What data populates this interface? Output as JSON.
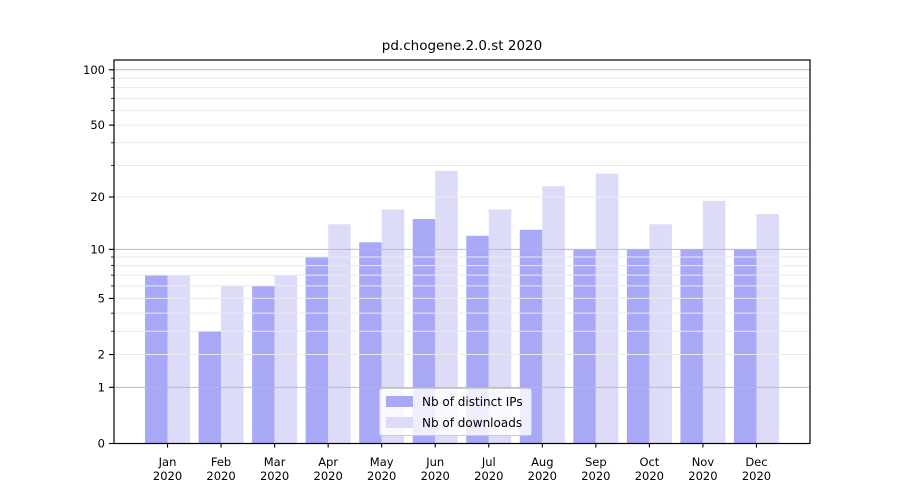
{
  "figure": {
    "background": "#ffffff"
  },
  "chart_data": {
    "type": "bar",
    "title": "pd.chogene.2.0.st 2020",
    "categories": [
      "Jan",
      "Feb",
      "Mar",
      "Apr",
      "May",
      "Jun",
      "Jul",
      "Aug",
      "Sep",
      "Oct",
      "Nov",
      "Dec"
    ],
    "category_year": "2020",
    "series": [
      {
        "key": "distinct-ips",
        "name": "Nb of distinct IPs",
        "color": "#a8a8f7",
        "values": [
          7,
          3,
          6,
          9,
          11,
          15,
          12,
          13,
          10,
          10,
          10,
          10
        ]
      },
      {
        "key": "downloads",
        "name": "Nb of downloads",
        "color": "#dcdcf8",
        "values": [
          7,
          6,
          7,
          14,
          17,
          28,
          17,
          23,
          27,
          14,
          19,
          16
        ]
      }
    ],
    "xlabel": "",
    "ylabel": "",
    "yscale": "log1p",
    "ylim": [
      0,
      113
    ],
    "ytick_values": [
      0,
      1,
      2,
      5,
      10,
      20,
      50,
      100
    ],
    "major_grid_values": [
      1,
      10,
      100
    ],
    "minor_grid_values": [
      2,
      3,
      4,
      5,
      6,
      7,
      8,
      9,
      20,
      30,
      40,
      50,
      60,
      70,
      80,
      90
    ],
    "grid": "on",
    "legend_position": "lower center",
    "colors": {
      "axis": "#000000",
      "text": "#000000",
      "grid_major": "#bbbbbb",
      "grid_minor": "#eaeaea",
      "legend_border": "#cccccc",
      "legend_bg": "rgba(255,255,255,0.8)"
    }
  }
}
